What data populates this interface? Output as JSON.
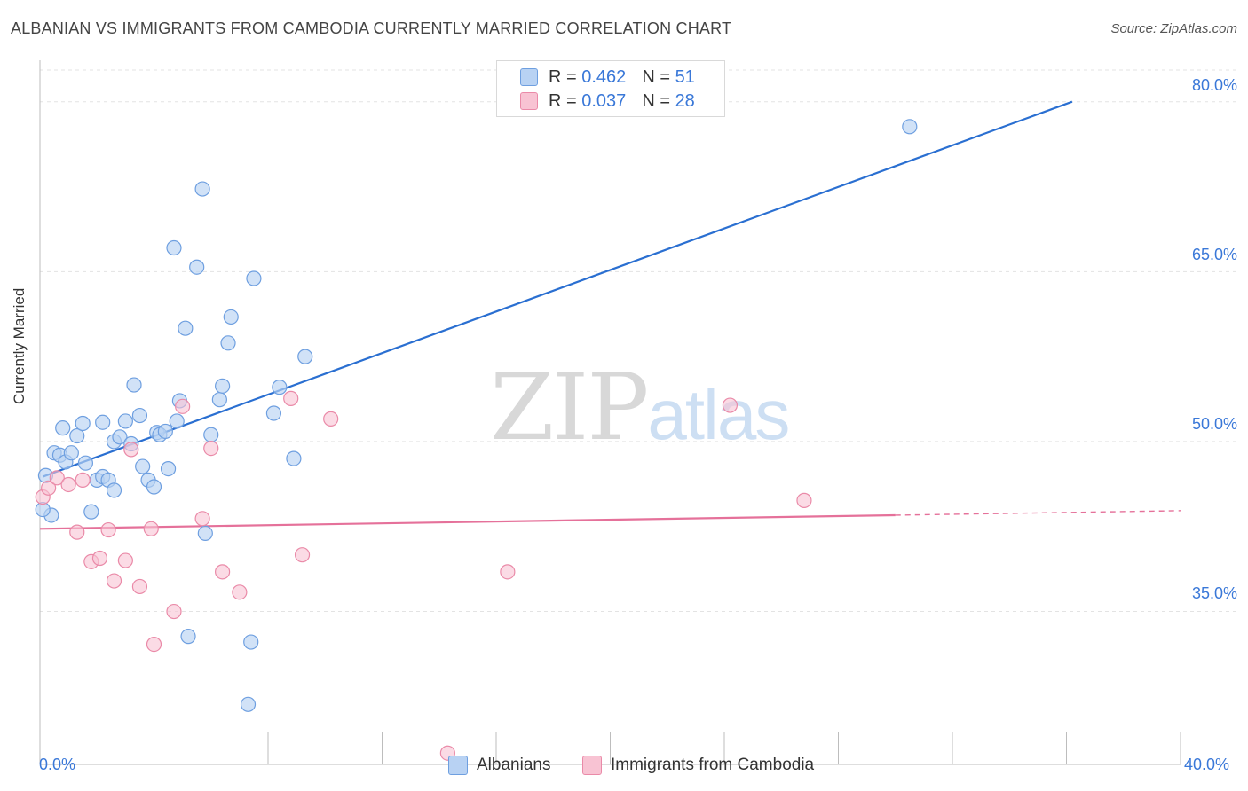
{
  "header": {
    "title": "ALBANIAN VS IMMIGRANTS FROM CAMBODIA CURRENTLY MARRIED CORRELATION CHART",
    "source": "Source: ZipAtlas.com"
  },
  "watermark": {
    "zip": "ZIP",
    "atlas": "atlas"
  },
  "legend": {
    "rows": [
      {
        "r_label": "R =",
        "r_value": "0.462",
        "n_label": "N =",
        "n_value": "51"
      },
      {
        "r_label": "R =",
        "r_value": "0.037",
        "n_label": "N =",
        "n_value": "28"
      }
    ]
  },
  "bottom_legend": {
    "series1": "Albanians",
    "series2": "Immigrants from Cambodia"
  },
  "axis": {
    "ylabel": "Currently Married",
    "x_min_label": "0.0%",
    "x_max_label": "40.0%",
    "y_ticks": [
      "80.0%",
      "65.0%",
      "50.0%",
      "35.0%"
    ]
  },
  "colors": {
    "albanians_fill": "#b8d2f3",
    "albanians_stroke": "#6e9fe0",
    "albanians_line": "#2a6fd1",
    "cambodia_fill": "#f8c3d3",
    "cambodia_stroke": "#ea8aa8",
    "cambodia_line": "#e5719a",
    "tick_label": "#3a78d8"
  },
  "chart_data": {
    "type": "scatter",
    "xlabel": "",
    "ylabel": "Currently Married",
    "xlim": [
      0,
      40
    ],
    "ylim": [
      21.5,
      83.5
    ],
    "y_gridlines": [
      35,
      50,
      65,
      80
    ],
    "series": [
      {
        "name": "Albanians",
        "points": [
          [
            0.2,
            47.0
          ],
          [
            0.4,
            43.5
          ],
          [
            0.5,
            49.0
          ],
          [
            0.7,
            48.8
          ],
          [
            0.8,
            51.2
          ],
          [
            0.9,
            48.2
          ],
          [
            1.1,
            49.0
          ],
          [
            1.3,
            50.5
          ],
          [
            1.5,
            51.6
          ],
          [
            1.6,
            48.1
          ],
          [
            1.8,
            43.8
          ],
          [
            2.0,
            46.6
          ],
          [
            2.2,
            51.7
          ],
          [
            2.2,
            46.9
          ],
          [
            2.4,
            46.6
          ],
          [
            2.6,
            45.7
          ],
          [
            2.6,
            50.0
          ],
          [
            2.8,
            50.4
          ],
          [
            3.0,
            51.8
          ],
          [
            3.2,
            49.8
          ],
          [
            3.3,
            55.0
          ],
          [
            3.5,
            52.3
          ],
          [
            3.6,
            47.8
          ],
          [
            3.8,
            46.6
          ],
          [
            4.0,
            46.0
          ],
          [
            4.1,
            50.8
          ],
          [
            4.2,
            50.6
          ],
          [
            4.4,
            50.9
          ],
          [
            4.5,
            47.6
          ],
          [
            4.7,
            67.1
          ],
          [
            4.8,
            51.8
          ],
          [
            4.9,
            53.6
          ],
          [
            5.1,
            60.0
          ],
          [
            5.2,
            32.8
          ],
          [
            5.5,
            65.4
          ],
          [
            5.7,
            72.3
          ],
          [
            5.8,
            41.9
          ],
          [
            6.0,
            50.6
          ],
          [
            6.3,
            53.7
          ],
          [
            6.4,
            54.9
          ],
          [
            6.6,
            58.7
          ],
          [
            6.7,
            61.0
          ],
          [
            7.3,
            26.8
          ],
          [
            7.4,
            32.3
          ],
          [
            7.5,
            64.4
          ],
          [
            8.2,
            52.5
          ],
          [
            8.4,
            54.8
          ],
          [
            8.9,
            48.5
          ],
          [
            9.3,
            57.5
          ],
          [
            30.5,
            77.8
          ],
          [
            0.1,
            44.0
          ]
        ],
        "trend": {
          "x": [
            0.1,
            36.2
          ],
          "y": [
            46.9,
            80.0
          ]
        }
      },
      {
        "name": "Immigrants from Cambodia",
        "points": [
          [
            0.1,
            45.1
          ],
          [
            0.3,
            45.9
          ],
          [
            0.6,
            46.8
          ],
          [
            1.0,
            46.2
          ],
          [
            1.3,
            42.0
          ],
          [
            1.5,
            46.6
          ],
          [
            1.8,
            39.4
          ],
          [
            2.1,
            39.7
          ],
          [
            2.4,
            42.2
          ],
          [
            2.6,
            37.7
          ],
          [
            3.0,
            39.5
          ],
          [
            3.2,
            49.3
          ],
          [
            3.5,
            37.2
          ],
          [
            3.9,
            42.3
          ],
          [
            4.0,
            32.1
          ],
          [
            4.7,
            35.0
          ],
          [
            5.0,
            53.1
          ],
          [
            5.7,
            43.2
          ],
          [
            6.0,
            49.4
          ],
          [
            6.4,
            38.5
          ],
          [
            7.0,
            36.7
          ],
          [
            8.8,
            53.8
          ],
          [
            9.2,
            40.0
          ],
          [
            10.2,
            52.0
          ],
          [
            16.4,
            38.5
          ],
          [
            24.2,
            53.2
          ],
          [
            26.8,
            44.8
          ],
          [
            14.3,
            22.5
          ]
        ],
        "trend": {
          "x": [
            0.0,
            30.0
          ],
          "y": [
            42.3,
            43.5
          ]
        },
        "trend_dashed": {
          "x": [
            30.0,
            40.0
          ],
          "y": [
            43.5,
            43.9
          ]
        }
      }
    ]
  }
}
